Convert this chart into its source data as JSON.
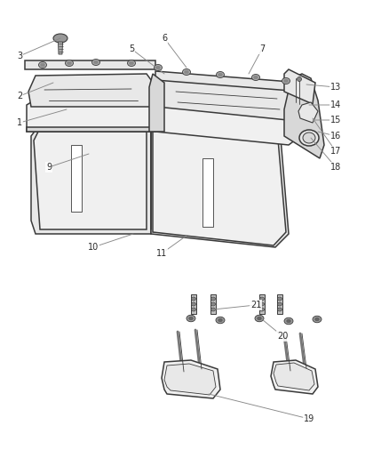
{
  "background_color": "#ffffff",
  "line_color": "#3a3a3a",
  "label_color": "#2a2a2a",
  "leader_color": "#888888",
  "lw_main": 1.1,
  "lw_thin": 0.6,
  "lw_detail": 0.5,
  "font_size": 7.0
}
